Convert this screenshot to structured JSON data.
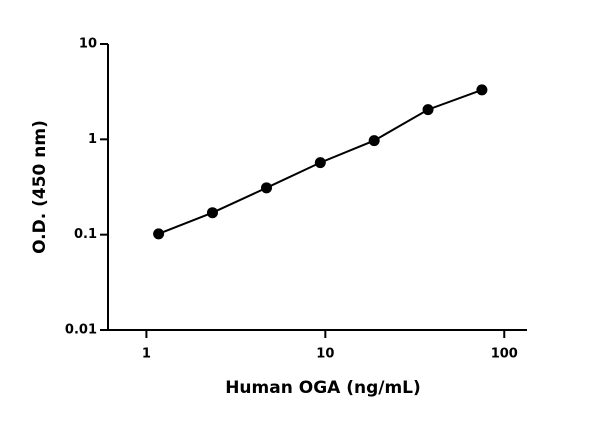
{
  "chart_data": {
    "type": "scatter",
    "x_label": "Human OGA (ng/mL)",
    "y_label": "O.D. (450 nm)",
    "x_log": true,
    "y_log": true,
    "xlim": [
      0.61,
      134
    ],
    "ylim": [
      0.01,
      10
    ],
    "xticks": [
      1,
      10,
      100
    ],
    "yticks": [
      0.01,
      0.1,
      1,
      10
    ],
    "series": [
      {
        "color": "#000000",
        "x": [
          1.17,
          2.34,
          4.69,
          9.375,
          18.75,
          37.5,
          75
        ],
        "values": [
          0.102,
          0.17,
          0.31,
          0.57,
          0.97,
          2.05,
          3.3
        ]
      }
    ]
  }
}
